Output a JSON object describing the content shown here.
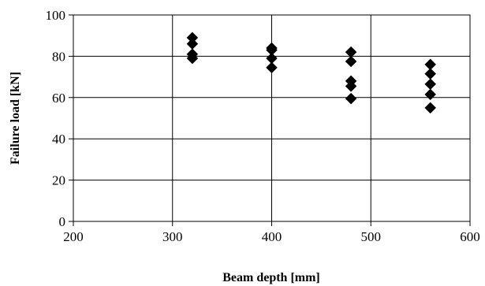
{
  "chart_data": {
    "type": "scatter",
    "title": "",
    "xlabel": "Beam depth [mm]",
    "ylabel": "Failure load [kN]",
    "xlim": [
      200,
      600
    ],
    "ylim": [
      0,
      100
    ],
    "xticks": [
      200,
      300,
      400,
      500,
      600
    ],
    "yticks": [
      0,
      20,
      40,
      60,
      80,
      100
    ],
    "grid": true,
    "marker": "diamond",
    "marker_color": "#000000",
    "series": [
      {
        "points": [
          [
            320,
            89
          ],
          [
            320,
            86
          ],
          [
            320,
            81
          ],
          [
            320,
            79
          ],
          [
            400,
            84
          ],
          [
            400,
            83
          ],
          [
            400,
            79
          ],
          [
            400,
            74.5
          ],
          [
            480,
            82
          ],
          [
            480,
            77.5
          ],
          [
            480,
            68
          ],
          [
            480,
            65.5
          ],
          [
            480,
            59.5
          ],
          [
            560,
            76
          ],
          [
            560,
            71.5
          ],
          [
            560,
            66.5
          ],
          [
            560,
            61.5
          ],
          [
            560,
            55
          ]
        ]
      }
    ]
  }
}
